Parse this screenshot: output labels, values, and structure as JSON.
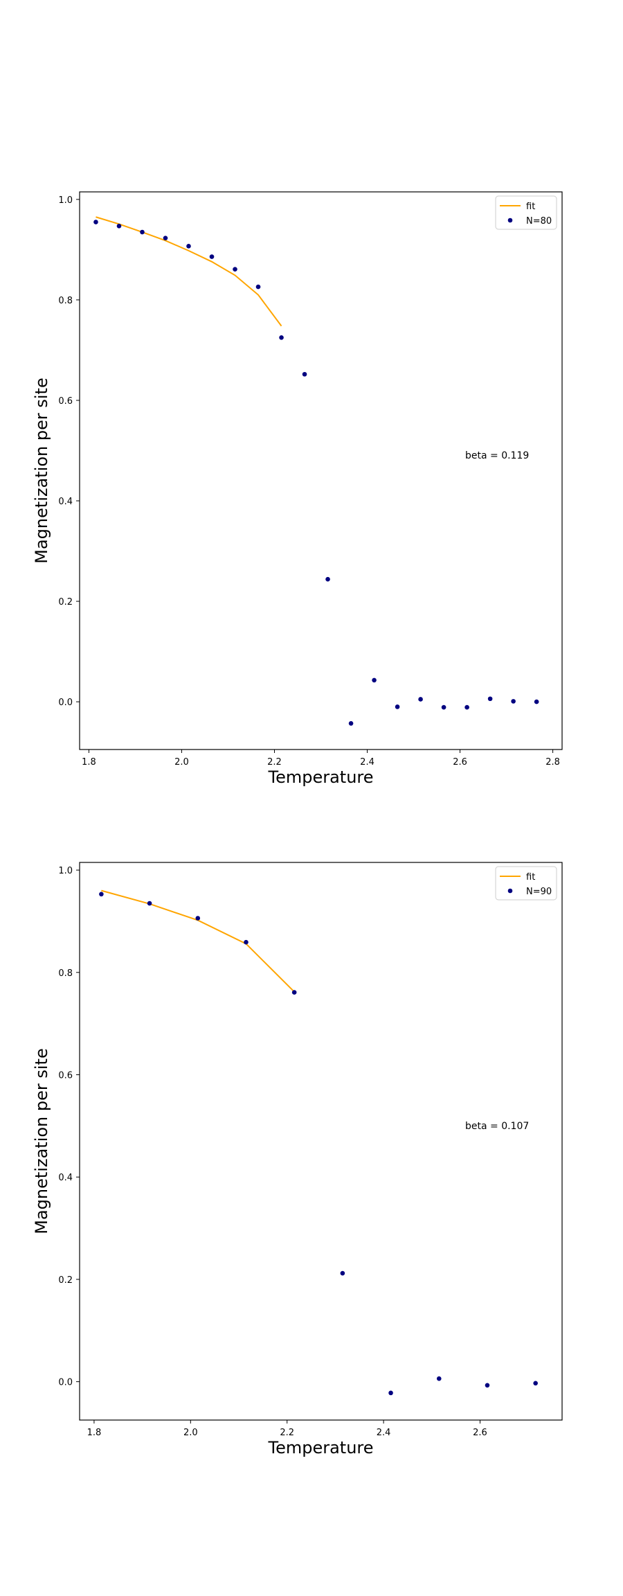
{
  "chart_data": [
    {
      "type": "scatter",
      "xlabel": "Temperature",
      "ylabel": "Magnetization per site",
      "xlim": [
        1.78,
        2.82
      ],
      "ylim": [
        -0.095,
        1.015
      ],
      "xticks": [
        "1.8",
        "2.0",
        "2.2",
        "2.4",
        "2.6",
        "2.8"
      ],
      "xtick_values": [
        1.8,
        2.0,
        2.2,
        2.4,
        2.6,
        2.8
      ],
      "yticks": [
        "0.0",
        "0.2",
        "0.4",
        "0.6",
        "0.8",
        "1.0"
      ],
      "ytick_values": [
        0.0,
        0.2,
        0.4,
        0.6,
        0.8,
        1.0
      ],
      "grid": false,
      "legend_position": "top-right",
      "annotation": "beta = 0.119",
      "series": [
        {
          "name": "fit",
          "kind": "line",
          "color": "#ffa500",
          "x": [
            1.815,
            1.865,
            1.915,
            1.965,
            2.015,
            2.065,
            2.115,
            2.165,
            2.215
          ],
          "y": [
            0.965,
            0.951,
            0.935,
            0.918,
            0.898,
            0.876,
            0.849,
            0.81,
            0.748
          ]
        },
        {
          "name": "N=80",
          "kind": "scatter",
          "color": "#000080",
          "x": [
            1.815,
            1.865,
            1.915,
            1.965,
            2.015,
            2.065,
            2.115,
            2.165,
            2.215,
            2.265,
            2.315,
            2.365,
            2.415,
            2.465,
            2.515,
            2.565,
            2.615,
            2.665,
            2.715,
            2.765
          ],
          "y": [
            0.955,
            0.947,
            0.935,
            0.923,
            0.907,
            0.886,
            0.861,
            0.826,
            0.725,
            0.652,
            0.244,
            -0.043,
            0.043,
            -0.01,
            0.005,
            -0.011,
            -0.011,
            0.006,
            0.001,
            0.0
          ]
        }
      ]
    },
    {
      "type": "scatter",
      "xlabel": "Temperature",
      "ylabel": "Magnetization per site",
      "xlim": [
        1.77,
        2.77
      ],
      "ylim": [
        -0.075,
        1.015
      ],
      "xticks": [
        "1.8",
        "2.0",
        "2.2",
        "2.4",
        "2.6"
      ],
      "xtick_values": [
        1.8,
        2.0,
        2.2,
        2.4,
        2.6
      ],
      "yticks": [
        "0.0",
        "0.2",
        "0.4",
        "0.6",
        "0.8",
        "1.0"
      ],
      "ytick_values": [
        0.0,
        0.2,
        0.4,
        0.6,
        0.8,
        1.0
      ],
      "grid": false,
      "legend_position": "top-right",
      "annotation": "beta = 0.107",
      "series": [
        {
          "name": "fit",
          "kind": "line",
          "color": "#ffa500",
          "x": [
            1.815,
            1.915,
            2.015,
            2.115,
            2.215
          ],
          "y": [
            0.96,
            0.934,
            0.902,
            0.856,
            0.762
          ]
        },
        {
          "name": "N=90",
          "kind": "scatter",
          "color": "#000080",
          "x": [
            1.815,
            1.915,
            2.015,
            2.115,
            2.215,
            2.315,
            2.415,
            2.515,
            2.615,
            2.715
          ],
          "y": [
            0.953,
            0.935,
            0.906,
            0.859,
            0.761,
            0.212,
            -0.022,
            0.006,
            -0.007,
            -0.003
          ]
        }
      ]
    }
  ]
}
